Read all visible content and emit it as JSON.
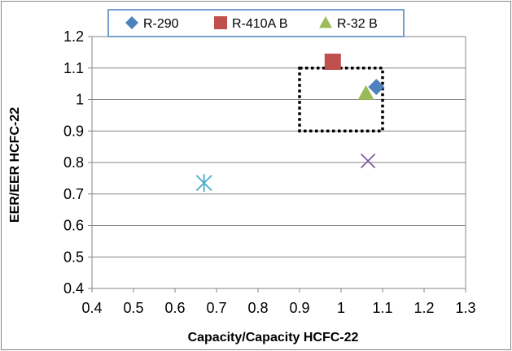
{
  "chart_data": {
    "type": "scatter",
    "xlabel": "Capacity/Capacity HCFC-22",
    "ylabel": "EER/EER HCFC-22",
    "xlim": [
      0.4,
      1.3
    ],
    "ylim": [
      0.4,
      1.2
    ],
    "x_ticks": [
      "0.4",
      "0.5",
      "0.6",
      "0.7",
      "0.8",
      "0.9",
      "1",
      "1.1",
      "1.2",
      "1.3"
    ],
    "y_ticks": [
      "0.4",
      "0.5",
      "0.6",
      "0.7",
      "0.8",
      "0.9",
      "1",
      "1.1",
      "1.2"
    ],
    "x_tick_values": [
      0.4,
      0.5,
      0.6,
      0.7,
      0.8,
      0.9,
      1.0,
      1.1,
      1.2,
      1.3
    ],
    "y_tick_values": [
      0.4,
      0.5,
      0.6,
      0.7,
      0.8,
      0.9,
      1.0,
      1.1,
      1.2
    ],
    "grid": "horizontal major",
    "legend_position": "top",
    "series": [
      {
        "name": "R-290",
        "marker": "diamond",
        "color": "#4F81BD",
        "points": [
          [
            1.085,
            1.04
          ]
        ]
      },
      {
        "name": "R-410A B",
        "marker": "square",
        "color": "#C0504D",
        "points": [
          [
            0.98,
            1.12
          ]
        ]
      },
      {
        "name": "R-32 B",
        "marker": "triangle",
        "color": "#9BBB59",
        "points": [
          [
            1.06,
            1.02
          ]
        ]
      },
      {
        "marker": "x",
        "color": "#8064A2",
        "points": [
          [
            1.065,
            0.805
          ]
        ]
      },
      {
        "marker": "asterisk",
        "color": "#4BACC6",
        "points": [
          [
            0.67,
            0.735
          ]
        ]
      }
    ],
    "annotation_box": {
      "x": [
        0.9,
        1.1
      ],
      "y": [
        0.9,
        1.1
      ],
      "style": "dotted"
    }
  }
}
